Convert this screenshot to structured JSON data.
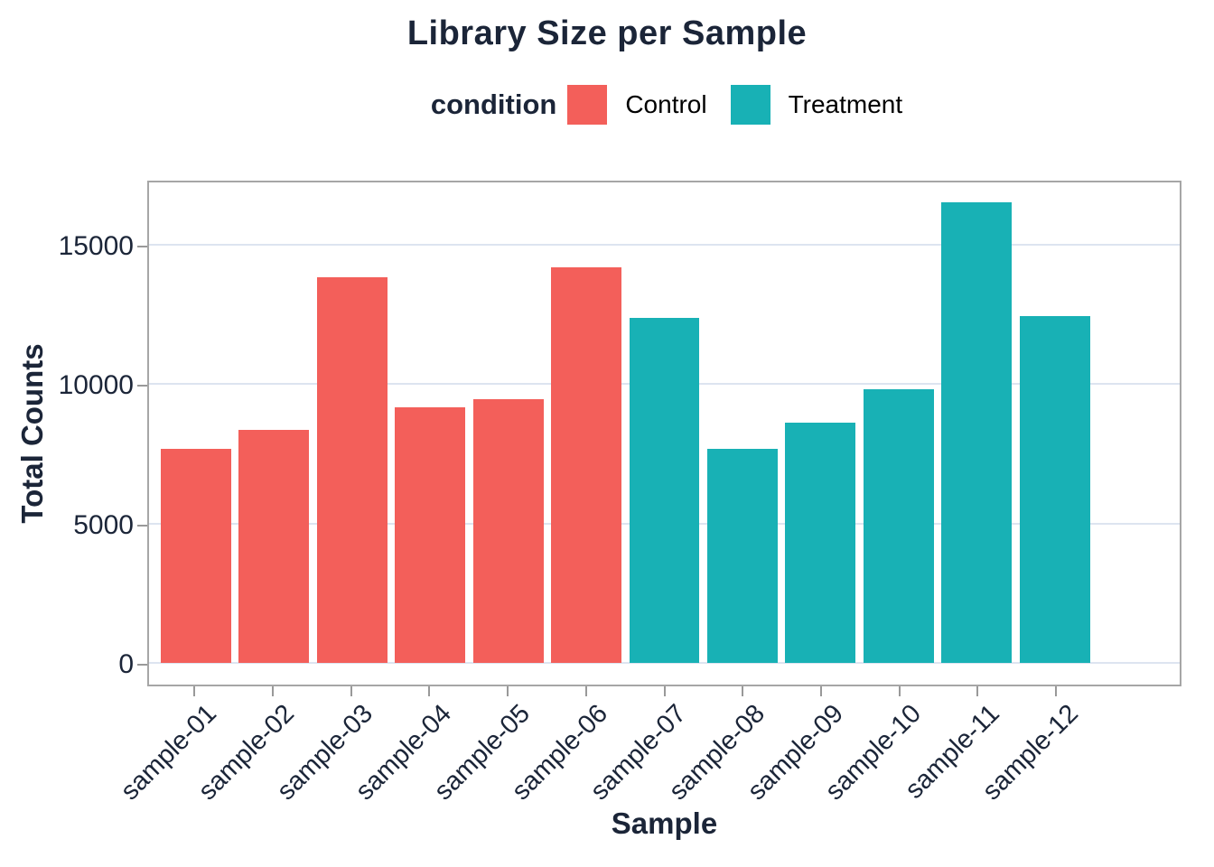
{
  "title": "Library Size per Sample",
  "legend": {
    "title": "condition",
    "items": [
      {
        "label": "Control",
        "color": "#F35F5A"
      },
      {
        "label": "Treatment",
        "color": "#18B1B5"
      }
    ]
  },
  "axes": {
    "y_title": "Total Counts",
    "x_title": "Sample",
    "y_tick_labels": [
      "0",
      "5000",
      "10000",
      "15000"
    ]
  },
  "chart_data": {
    "type": "bar",
    "title": "Library Size per Sample",
    "xlabel": "Sample",
    "ylabel": "Total Counts",
    "legend_title": "condition",
    "legend_position": "top",
    "grid": true,
    "categories": [
      "sample-01",
      "sample-02",
      "sample-03",
      "sample-04",
      "sample-05",
      "sample-06",
      "sample-07",
      "sample-08",
      "sample-09",
      "sample-10",
      "sample-11",
      "sample-12"
    ],
    "values": [
      7670,
      8340,
      13810,
      9160,
      9440,
      14170,
      12360,
      7660,
      8610,
      9820,
      16510,
      12430
    ],
    "conditions": [
      "Control",
      "Control",
      "Control",
      "Control",
      "Control",
      "Control",
      "Treatment",
      "Treatment",
      "Treatment",
      "Treatment",
      "Treatment",
      "Treatment"
    ],
    "series": [
      {
        "name": "Control",
        "categories": [
          "sample-01",
          "sample-02",
          "sample-03",
          "sample-04",
          "sample-05",
          "sample-06"
        ],
        "values": [
          7670,
          8340,
          13810,
          9160,
          9440,
          14170
        ]
      },
      {
        "name": "Treatment",
        "categories": [
          "sample-07",
          "sample-08",
          "sample-09",
          "sample-10",
          "sample-11",
          "sample-12"
        ],
        "values": [
          12360,
          7660,
          8610,
          9820,
          16510,
          12430
        ]
      }
    ],
    "colors": {
      "Control": "#F35F5A",
      "Treatment": "#18B1B5"
    },
    "yticks": [
      0,
      5000,
      10000,
      15000
    ],
    "ylim": [
      0,
      17350
    ]
  },
  "style": {
    "grid_color": "#DDE4F0",
    "panel_border_color": "#A6A6A6",
    "tick_color": "#999999",
    "text_color": "#1B2538",
    "legend_text_color": "#000000",
    "background": "#FFFFFF"
  }
}
